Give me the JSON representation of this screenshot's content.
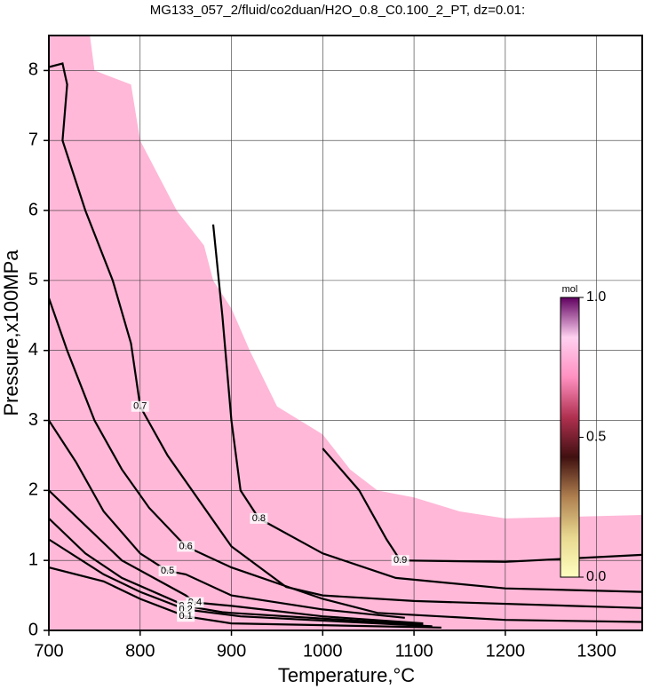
{
  "chart_data": {
    "type": "contour",
    "title": "MG133_057_2/fluid/co2duan/H2O_0.8_C0.100_2_PT, dz=0.01:",
    "x_label": "Temperature,°C",
    "y_label": "Pressure,x100MPa",
    "xlim": [
      700,
      1350
    ],
    "ylim": [
      0,
      8.5
    ],
    "xticks": [
      700,
      800,
      900,
      1000,
      1100,
      1200,
      1300
    ],
    "yticks": [
      0,
      1,
      2,
      3,
      4,
      5,
      6,
      7,
      8
    ],
    "grid": true,
    "region": {
      "color": "#ffb8d8",
      "x": [
        700,
        745,
        750,
        790,
        800,
        820,
        840,
        870,
        880,
        900,
        920,
        950,
        1000,
        1030,
        1060,
        1100,
        1150,
        1200,
        1350,
        1350,
        700
      ],
      "y": [
        8.5,
        8.5,
        8.0,
        7.8,
        7.0,
        6.5,
        6.0,
        5.5,
        5.0,
        4.6,
        4.0,
        3.2,
        2.8,
        2.3,
        2.0,
        1.9,
        1.7,
        1.6,
        1.65,
        0,
        0
      ]
    },
    "contours": [
      {
        "level": 0.9,
        "x": [
          1000,
          1040,
          1070,
          1085,
          1200,
          1350
        ],
        "y": [
          2.6,
          2.0,
          1.3,
          1.0,
          0.98,
          1.08
        ]
      },
      {
        "level": 0.8,
        "x": [
          880,
          890,
          900,
          910,
          930,
          1000,
          1080,
          1200,
          1350
        ],
        "y": [
          5.8,
          4.5,
          3.0,
          2.0,
          1.6,
          1.1,
          0.75,
          0.6,
          0.55
        ]
      },
      {
        "level": 0.7,
        "x": [
          700,
          715,
          720,
          715,
          740,
          770,
          790,
          800,
          830,
          900,
          960,
          1000,
          1100,
          1350
        ],
        "y": [
          8.05,
          8.1,
          7.8,
          7.0,
          6.0,
          5.0,
          4.1,
          3.2,
          2.5,
          1.2,
          0.62,
          0.5,
          0.42,
          0.32
        ]
      },
      {
        "level": 0.6,
        "x": [
          700,
          720,
          750,
          780,
          810,
          850,
          900,
          1000,
          1060,
          1200,
          1350
        ],
        "y": [
          4.75,
          4.0,
          3.0,
          2.3,
          1.75,
          1.2,
          0.9,
          0.45,
          0.25,
          0.15,
          0.12
        ]
      },
      {
        "level": 0.5,
        "x": [
          700,
          730,
          760,
          800,
          830,
          850,
          900,
          1000,
          1090
        ],
        "y": [
          3.0,
          2.4,
          1.7,
          1.1,
          0.85,
          0.8,
          0.5,
          0.3,
          0.18
        ]
      },
      {
        "level": 0.4,
        "x": [
          700,
          740,
          780,
          850,
          860,
          900,
          1000,
          1110
        ],
        "y": [
          2.0,
          1.5,
          1.0,
          0.5,
          0.4,
          0.35,
          0.2,
          0.1
        ]
      },
      {
        "level": 0.3,
        "x": [
          700,
          740,
          780,
          850,
          890,
          900,
          1110
        ],
        "y": [
          1.6,
          1.1,
          0.75,
          0.35,
          0.26,
          0.25,
          0.08
        ]
      },
      {
        "level": 0.2,
        "x": [
          700,
          760,
          800,
          850,
          910,
          1120
        ],
        "y": [
          1.3,
          0.8,
          0.55,
          0.3,
          0.2,
          0.06
        ]
      },
      {
        "level": 0.1,
        "x": [
          700,
          760,
          800,
          850,
          900,
          1130
        ],
        "y": [
          0.9,
          0.7,
          0.45,
          0.2,
          0.1,
          0.04
        ]
      }
    ],
    "colorbar": {
      "title": "mol",
      "lim": [
        0,
        1
      ],
      "ticks": [
        {
          "value": 0,
          "label": "0.0"
        },
        {
          "value": 0.5,
          "label": "0.5"
        },
        {
          "value": 1,
          "label": "1.0"
        }
      ],
      "colors": [
        "#ffffc0",
        "#e8d890",
        "#b08050",
        "#401010",
        "#b03050",
        "#ff90c0",
        "#ffd0f0",
        "#600060"
      ]
    }
  }
}
